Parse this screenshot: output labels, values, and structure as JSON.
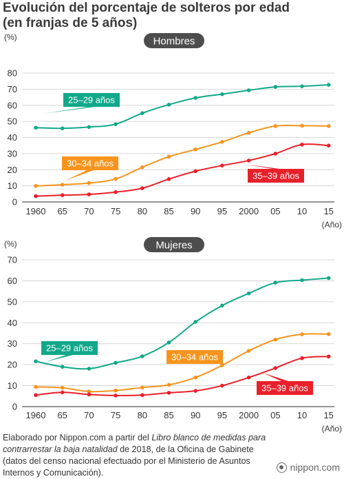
{
  "title": {
    "line1": "Evolución del porcentaje de solteros por edad",
    "line2": "(en franjas de 5 años)"
  },
  "colors": {
    "s2529": "#12a88a",
    "s3034": "#f7941d",
    "s3539": "#e8202a",
    "panel_label_bg": "#4d4d4d",
    "grid": "#cccccc"
  },
  "chart_data": [
    {
      "type": "line",
      "title": "Hombres",
      "ylabel": "(%)",
      "xlabel": "(Año)",
      "categories": [
        "1960",
        "65",
        "70",
        "75",
        "80",
        "85",
        "90",
        "95",
        "2000",
        "05",
        "10",
        "15"
      ],
      "ylim": [
        0,
        80
      ],
      "yticks": [
        0,
        10,
        20,
        30,
        40,
        50,
        60,
        70,
        80
      ],
      "grid": true,
      "series": [
        {
          "name": "25–29 años",
          "color": "#12a88a",
          "values": [
            46.1,
            45.7,
            46.5,
            48.3,
            55.1,
            60.4,
            64.6,
            66.9,
            69.3,
            71.4,
            71.8,
            72.7
          ]
        },
        {
          "name": "30–34 años",
          "color": "#f7941d",
          "values": [
            9.9,
            10.7,
            11.7,
            14.3,
            21.5,
            28.1,
            32.6,
            37.3,
            42.9,
            47.1,
            47.3,
            47.1
          ]
        },
        {
          "name": "35–39 años",
          "color": "#e8202a",
          "values": [
            3.6,
            4.2,
            4.7,
            6.1,
            8.5,
            14.2,
            19.1,
            22.6,
            25.7,
            30.0,
            35.6,
            35.0
          ]
        }
      ]
    },
    {
      "type": "line",
      "title": "Mujeres",
      "ylabel": "(%)",
      "xlabel": "(Año)",
      "categories": [
        "1960",
        "65",
        "70",
        "75",
        "80",
        "85",
        "90",
        "95",
        "2000",
        "05",
        "10",
        "15"
      ],
      "ylim": [
        0,
        70
      ],
      "yticks": [
        0,
        10,
        20,
        30,
        40,
        50,
        60,
        70
      ],
      "grid": true,
      "series": [
        {
          "name": "25–29 años",
          "color": "#12a88a",
          "values": [
            21.6,
            19.0,
            18.1,
            20.9,
            24.0,
            30.6,
            40.4,
            48.2,
            54.0,
            59.1,
            60.3,
            61.3
          ]
        },
        {
          "name": "30–34 años",
          "color": "#f7941d",
          "values": [
            9.4,
            9.0,
            7.2,
            7.7,
            9.1,
            10.4,
            13.9,
            19.7,
            26.6,
            32.0,
            34.5,
            34.6
          ]
        },
        {
          "name": "35–39 años",
          "color": "#e8202a",
          "values": [
            5.5,
            6.8,
            5.8,
            5.3,
            5.5,
            6.6,
            7.5,
            10.0,
            13.9,
            18.4,
            23.1,
            23.9
          ]
        }
      ]
    }
  ],
  "source": {
    "prefix": "Elaborado por Nippon.com a partir del ",
    "book": "Libro blanco de medidas para contrarrestar la baja natalidad",
    "suffix": " de 2018, de la Oficina de Gabinete (datos del censo nacional efectuado por el Ministerio de Asuntos Internos y Comunicación)."
  },
  "brand": "nippon.com"
}
